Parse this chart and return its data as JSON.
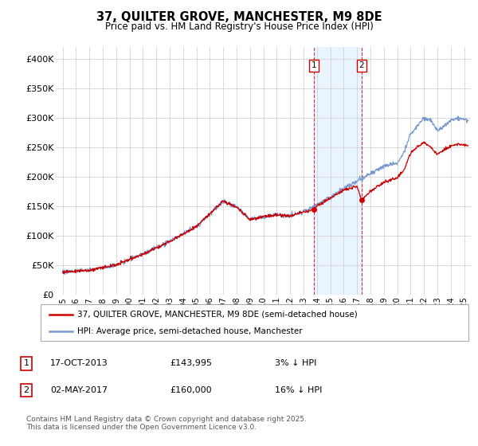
{
  "title": "37, QUILTER GROVE, MANCHESTER, M9 8DE",
  "subtitle": "Price paid vs. HM Land Registry's House Price Index (HPI)",
  "ylabel_ticks": [
    "£0",
    "£50K",
    "£100K",
    "£150K",
    "£200K",
    "£250K",
    "£300K",
    "£350K",
    "£400K"
  ],
  "ytick_values": [
    0,
    50000,
    100000,
    150000,
    200000,
    250000,
    300000,
    350000,
    400000
  ],
  "ylim": [
    0,
    420000
  ],
  "xlim_start": 1994.5,
  "xlim_end": 2025.5,
  "hpi_color": "#7799cc",
  "price_color": "#cc0000",
  "marker1_date": 2013.79,
  "marker2_date": 2017.33,
  "marker1_price": 143995,
  "marker2_price": 160000,
  "marker1_label": "17-OCT-2013",
  "marker2_label": "02-MAY-2017",
  "marker1_hpi_pct": "3% ↓ HPI",
  "marker2_hpi_pct": "16% ↓ HPI",
  "legend_entry1": "37, QUILTER GROVE, MANCHESTER, M9 8DE (semi-detached house)",
  "legend_entry2": "HPI: Average price, semi-detached house, Manchester",
  "footnote": "Contains HM Land Registry data © Crown copyright and database right 2025.\nThis data is licensed under the Open Government Licence v3.0.",
  "background_color": "#ffffff",
  "grid_color": "#cccccc",
  "shading_color": "#ddeeff"
}
